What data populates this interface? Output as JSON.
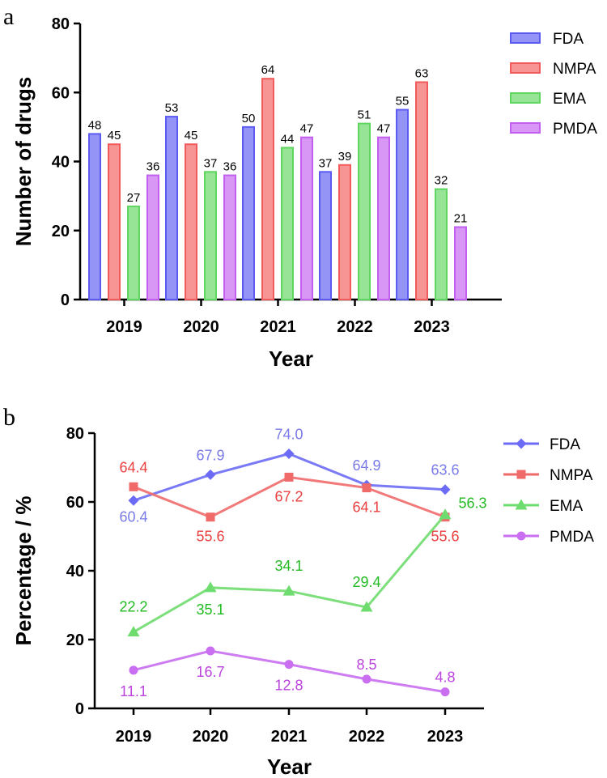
{
  "chart_data": [
    {
      "type": "bar",
      "panel": "a",
      "title": "",
      "xlabel": "Year",
      "ylabel": "Number of drugs",
      "ylim": [
        0,
        80
      ],
      "yticks": [
        "0",
        "20",
        "40",
        "60",
        "80"
      ],
      "categories": [
        "2019",
        "2020",
        "2021",
        "2022",
        "2023"
      ],
      "legend_position": "top-right",
      "series": [
        {
          "name": "FDA",
          "color": "#5b5bf2",
          "values": [
            48,
            53,
            50,
            37,
            55
          ]
        },
        {
          "name": "NMPA",
          "color": "#f25b5b",
          "values": [
            45,
            45,
            64,
            39,
            63
          ]
        },
        {
          "name": "EMA",
          "color": "#5fd65f",
          "values": [
            27,
            37,
            44,
            51,
            32
          ]
        },
        {
          "name": "PMDA",
          "color": "#c35ff0",
          "values": [
            36,
            36,
            47,
            47,
            21
          ]
        }
      ]
    },
    {
      "type": "line",
      "panel": "b",
      "title": "",
      "xlabel": "Year",
      "ylabel": "Percentage / %",
      "ylim": [
        0,
        80
      ],
      "yticks": [
        "0",
        "20",
        "40",
        "60",
        "80"
      ],
      "categories": [
        "2019",
        "2020",
        "2021",
        "2022",
        "2023"
      ],
      "legend_position": "top-right",
      "series": [
        {
          "name": "FDA",
          "color": "#6b6bf5",
          "label_color": "#7a7ae8",
          "marker": "diamond",
          "values": [
            60.4,
            67.9,
            74.0,
            64.9,
            63.6
          ],
          "labels": [
            "60.4",
            "67.9",
            "74.0",
            "64.9",
            "63.6"
          ]
        },
        {
          "name": "NMPA",
          "color": "#f06a6a",
          "label_color": "#ea4040",
          "marker": "square",
          "values": [
            64.4,
            55.6,
            67.2,
            64.1,
            55.6
          ],
          "labels": [
            "64.4",
            "55.6",
            "67.2",
            "64.1",
            "55.6"
          ]
        },
        {
          "name": "EMA",
          "color": "#6edc6e",
          "label_color": "#22bb22",
          "marker": "triangle",
          "values": [
            22.2,
            35.1,
            34.1,
            29.4,
            56.3
          ],
          "labels": [
            "22.2",
            "35.1",
            "34.1",
            "29.4",
            "56.3"
          ]
        },
        {
          "name": "PMDA",
          "color": "#c96ef0",
          "label_color": "#bb44dd",
          "marker": "circle",
          "values": [
            11.1,
            16.7,
            12.8,
            8.5,
            4.8
          ],
          "labels": [
            "11.1",
            "16.7",
            "12.8",
            "8.5",
            "4.8"
          ]
        }
      ]
    }
  ]
}
